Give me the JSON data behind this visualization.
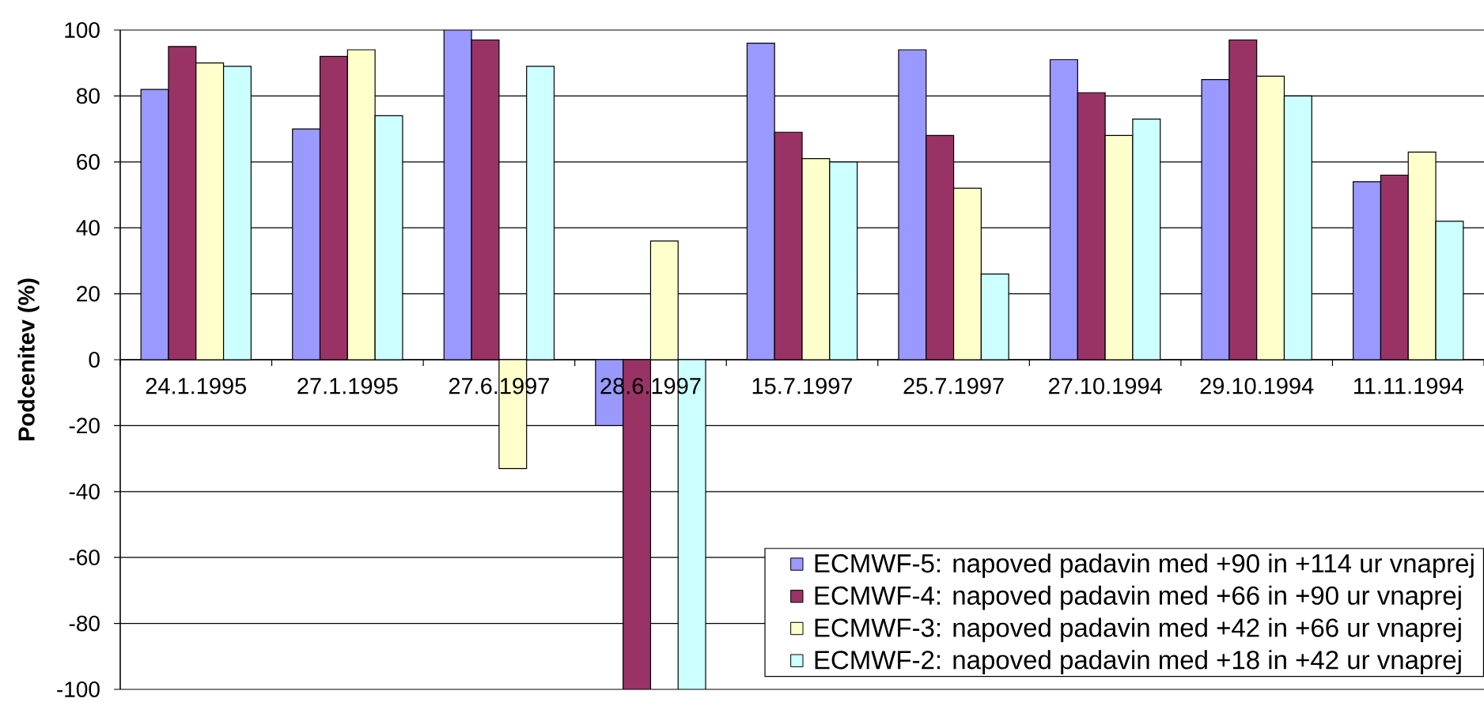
{
  "chart_data": {
    "type": "bar",
    "ylabel": "Podcenitev (%)",
    "categories": [
      "24.1.1995",
      "27.1.1995",
      "27.6.1997",
      "28.6.1997",
      "15.7.1997",
      "25.7.1997",
      "27.10.1994",
      "29.10.1994",
      "11.11.1994"
    ],
    "series": [
      {
        "name": "ECMWF-5: napoved padavin med +90 in +114 ur vnaprej",
        "color": "#9999ff",
        "values": [
          82,
          70,
          100,
          -20,
          96,
          94,
          91,
          85,
          54
        ]
      },
      {
        "name": "ECMWF-4: napoved padavin med +66 in +90 ur vnaprej",
        "color": "#993366",
        "values": [
          95,
          92,
          97,
          -100,
          69,
          68,
          81,
          97,
          56
        ]
      },
      {
        "name": "ECMWF-3: napoved padavin med +42 in +66 ur vnaprej",
        "color": "#ffffcc",
        "values": [
          90,
          94,
          -33,
          36,
          61,
          52,
          68,
          86,
          63
        ]
      },
      {
        "name": "ECMWF-2: napoved padavin med +18 in +42 ur vnaprej",
        "color": "#ccffff",
        "values": [
          89,
          74,
          89,
          -100,
          60,
          26,
          73,
          80,
          42
        ]
      }
    ],
    "ylim": [
      -100,
      100
    ],
    "yticks": [
      -100,
      -80,
      -60,
      -40,
      -20,
      0,
      20,
      40,
      60,
      80,
      100
    ],
    "grid": "y",
    "legend": "bottom right"
  }
}
